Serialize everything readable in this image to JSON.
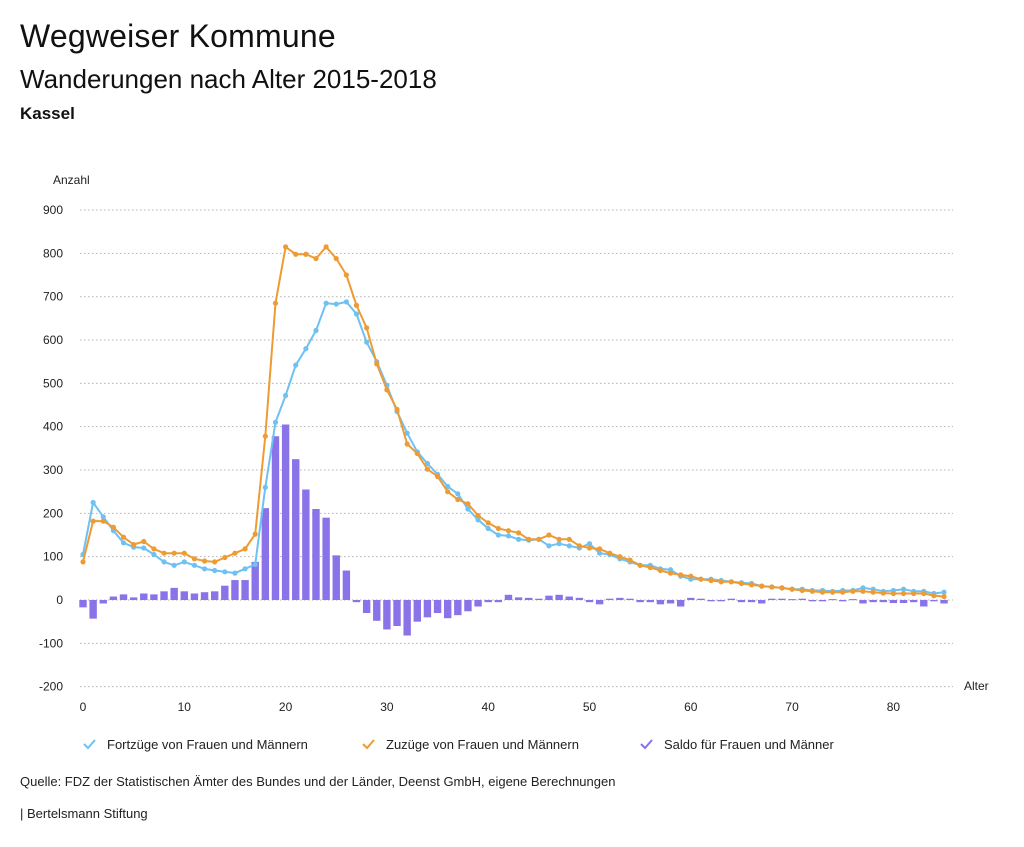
{
  "header": {
    "title": "Wegweiser Kommune",
    "subtitle": "Wanderungen nach Alter 2015-2018",
    "region": "Kassel"
  },
  "footer": {
    "source": "Quelle: FDZ der Statistischen Ämter des Bundes und der Länder, Deenst GmbH, eigene Berechnungen",
    "brand": "| Bertelsmann Stiftung"
  },
  "colors": {
    "fortzuege": "#6ec1f2",
    "zuzuege": "#ee9b33",
    "saldo": "#8a72e8",
    "grid": "#b3b3b3"
  },
  "chart_data": {
    "type": "line+bar",
    "title": "Wanderungen nach Alter 2015-2018",
    "ylabel": "Anzahl",
    "xlabel": "Alter",
    "ylim": [
      -200,
      900
    ],
    "xlim": [
      0,
      85
    ],
    "yticks": [
      900,
      800,
      700,
      600,
      500,
      400,
      300,
      200,
      100,
      0,
      -100,
      -200
    ],
    "xticks": [
      0,
      10,
      20,
      30,
      40,
      50,
      60,
      70,
      80
    ],
    "grid": true,
    "legend_position": "bottom",
    "x": [
      0,
      1,
      2,
      3,
      4,
      5,
      6,
      7,
      8,
      9,
      10,
      11,
      12,
      13,
      14,
      15,
      16,
      17,
      18,
      19,
      20,
      21,
      22,
      23,
      24,
      25,
      26,
      27,
      28,
      29,
      30,
      31,
      32,
      33,
      34,
      35,
      36,
      37,
      38,
      39,
      40,
      41,
      42,
      43,
      44,
      45,
      46,
      47,
      48,
      49,
      50,
      51,
      52,
      53,
      54,
      55,
      56,
      57,
      58,
      59,
      60,
      61,
      62,
      63,
      64,
      65,
      66,
      67,
      68,
      69,
      70,
      71,
      72,
      73,
      74,
      75,
      76,
      77,
      78,
      79,
      80,
      81,
      82,
      83,
      84,
      85
    ],
    "series": [
      {
        "name": "Fortzüge von Frauen und Männern",
        "kind": "line",
        "values": [
          105,
          225,
          192,
          160,
          132,
          122,
          120,
          105,
          88,
          80,
          88,
          80,
          72,
          68,
          65,
          62,
          72,
          82,
          260,
          410,
          472,
          542,
          580,
          622,
          685,
          683,
          688,
          660,
          595,
          550,
          495,
          435,
          385,
          342,
          315,
          290,
          262,
          245,
          210,
          185,
          165,
          150,
          148,
          140,
          138,
          140,
          125,
          130,
          125,
          120,
          130,
          108,
          105,
          95,
          88,
          80,
          80,
          72,
          70,
          55,
          48,
          48,
          48,
          45,
          42,
          40,
          38,
          32,
          30,
          28,
          25,
          25,
          22,
          22,
          20,
          22,
          22,
          28,
          25,
          20,
          22,
          25,
          20,
          20,
          15,
          18
        ]
      },
      {
        "name": "Zuzüge von Frauen und Männern",
        "kind": "line",
        "values": [
          88,
          182,
          182,
          168,
          145,
          128,
          135,
          118,
          108,
          108,
          108,
          95,
          90,
          88,
          98,
          108,
          118,
          152,
          378,
          685,
          815,
          798,
          798,
          788,
          815,
          788,
          750,
          680,
          628,
          545,
          485,
          440,
          360,
          338,
          302,
          285,
          250,
          232,
          222,
          195,
          178,
          165,
          160,
          155,
          140,
          140,
          150,
          140,
          140,
          125,
          120,
          118,
          108,
          100,
          92,
          80,
          75,
          68,
          62,
          58,
          55,
          48,
          45,
          42,
          42,
          38,
          35,
          32,
          30,
          28,
          25,
          22,
          20,
          18,
          18,
          18,
          20,
          20,
          18,
          16,
          15,
          15,
          15,
          15,
          10,
          8
        ]
      },
      {
        "name": "Saldo für Frauen und Männer",
        "kind": "bar",
        "values": [
          -17,
          -43,
          -8,
          8,
          13,
          6,
          15,
          13,
          20,
          28,
          20,
          15,
          18,
          20,
          33,
          46,
          46,
          88,
          212,
          378,
          405,
          325,
          255,
          210,
          190,
          103,
          68,
          -5,
          -30,
          -48,
          -68,
          -60,
          -82,
          -50,
          -40,
          -30,
          -42,
          -35,
          -26,
          -15,
          -5,
          -5,
          12,
          6,
          5,
          3,
          10,
          12,
          8,
          5,
          -5,
          -10,
          3,
          5,
          3,
          -5,
          -5,
          -10,
          -8,
          -15,
          5,
          3,
          -3,
          -3,
          3,
          -5,
          -5,
          -8,
          3,
          3,
          2,
          3,
          -3,
          -3,
          2,
          -3,
          2,
          -8,
          -5,
          -5,
          -7,
          -7,
          -5,
          -15,
          -3,
          -8
        ]
      }
    ]
  }
}
